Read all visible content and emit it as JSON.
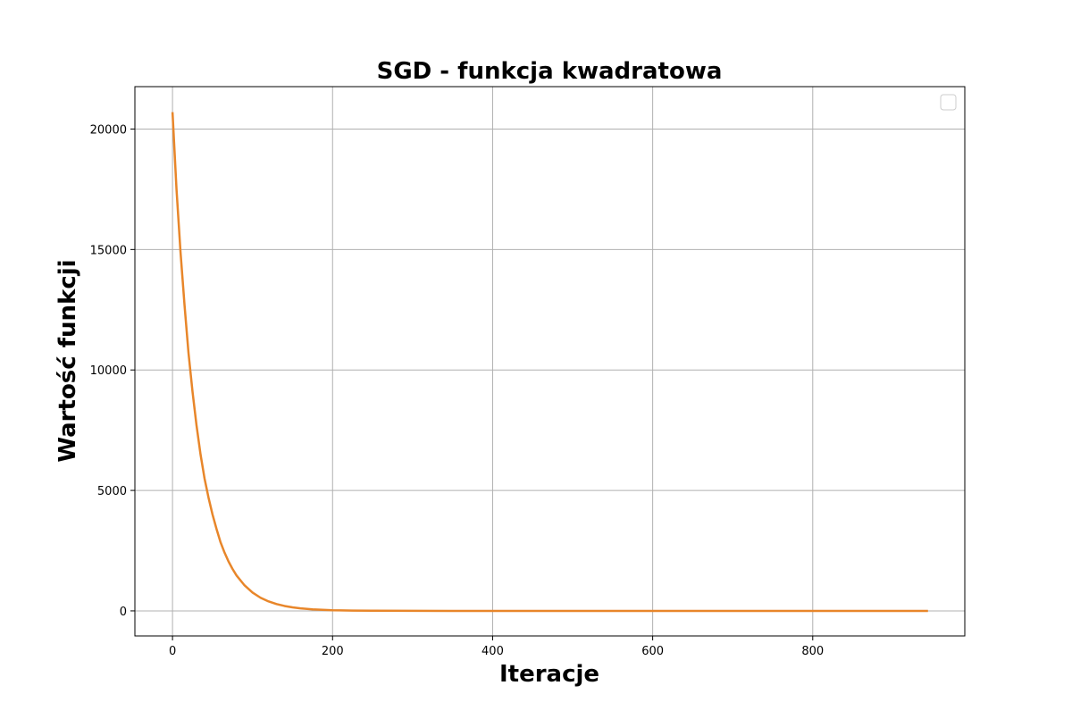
{
  "chart_data": {
    "type": "line",
    "title": "SGD - funkcja kwadratowa",
    "xlabel": "Iteracje",
    "ylabel": "Wartość funkcji",
    "xlim": [
      -47,
      990
    ],
    "ylim": [
      -1040,
      21760
    ],
    "xticks": [
      0,
      200,
      400,
      600,
      800
    ],
    "yticks": [
      0,
      5000,
      10000,
      15000,
      20000
    ],
    "grid": true,
    "legend": "top-right",
    "legend_entries": [],
    "series": [
      {
        "color": "#e8862a",
        "decay_rate": 0.033,
        "points": [
          [
            0,
            20700
          ],
          [
            5,
            17500
          ],
          [
            10,
            14900
          ],
          [
            15,
            12700
          ],
          [
            20,
            10700
          ],
          [
            25,
            9100
          ],
          [
            30,
            7700
          ],
          [
            35,
            6500
          ],
          [
            40,
            5500
          ],
          [
            45,
            4700
          ],
          [
            50,
            4000
          ],
          [
            55,
            3400
          ],
          [
            60,
            2850
          ],
          [
            65,
            2420
          ],
          [
            70,
            2050
          ],
          [
            75,
            1740
          ],
          [
            80,
            1470
          ],
          [
            90,
            1060
          ],
          [
            100,
            760
          ],
          [
            110,
            545
          ],
          [
            120,
            392
          ],
          [
            130,
            282
          ],
          [
            140,
            203
          ],
          [
            150,
            146
          ],
          [
            160,
            105
          ],
          [
            175,
            64
          ],
          [
            200,
            28
          ],
          [
            225,
            12
          ],
          [
            250,
            5
          ],
          [
            300,
            1
          ],
          [
            350,
            0
          ],
          [
            400,
            0
          ],
          [
            500,
            0
          ],
          [
            600,
            0
          ],
          [
            700,
            0
          ],
          [
            800,
            0
          ],
          [
            900,
            0
          ],
          [
            944,
            0
          ]
        ]
      }
    ]
  }
}
